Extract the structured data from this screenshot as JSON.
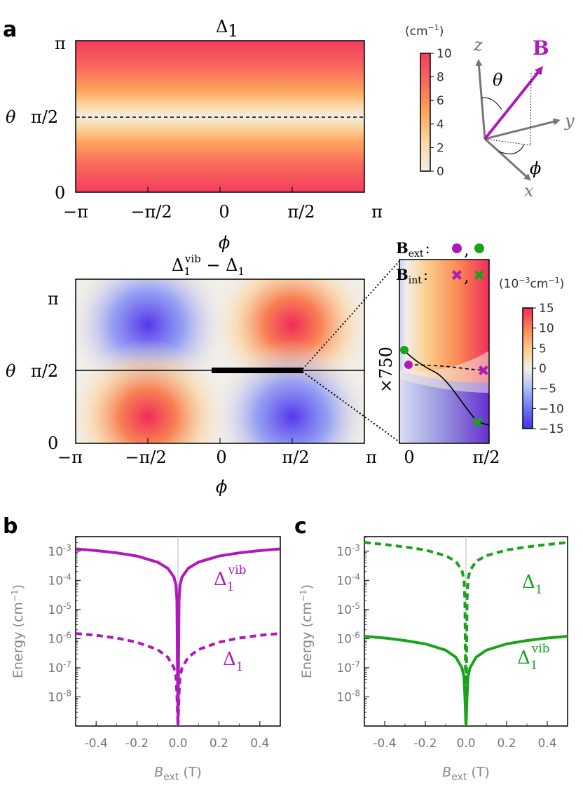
{
  "panel_labels": {
    "a": "a",
    "b": "b",
    "c": "c"
  },
  "colors": {
    "magenta": "#b118b9",
    "green": "#1aa21a",
    "gray": "#888888"
  },
  "panel_a_top": {
    "title": "Δ",
    "title_sub": "1",
    "y_label": "θ",
    "y_ticks": [
      "π",
      "π/2",
      "0"
    ],
    "x_ticks": [
      "−π",
      "−π/2",
      "0",
      "π/2",
      "π"
    ],
    "x_label": "ϕ",
    "colorbar": {
      "unit": "(cm",
      "unit_exp": "−1",
      "unit_close": ")",
      "ticks": [
        "10",
        "8",
        "6",
        "4",
        "2",
        "0"
      ]
    },
    "axes_diagram": {
      "B": "B",
      "z": "z",
      "y": "y",
      "x": "x",
      "theta": "θ",
      "phi": "ϕ"
    }
  },
  "panel_a_bottom": {
    "title_main": "Δ",
    "title_sub": "1",
    "title_sup": "vib",
    "title_minus": " − Δ",
    "title_sub2": "1",
    "y_label": "θ",
    "y_ticks": [
      "π",
      "π/2",
      "0"
    ],
    "x_ticks": [
      "−π",
      "−π/2",
      "0",
      "π/2",
      "π"
    ],
    "x_label": "ϕ",
    "inset": {
      "scale": "×750",
      "x_ticks": [
        "0",
        "π/2"
      ]
    },
    "legend": {
      "bext": "B",
      "bext_sub": "ext",
      "bint": "B",
      "bint_sub": "int",
      "sep": ":",
      "comma": ","
    },
    "colorbar": {
      "unit": "(10",
      "unit_exp1": "−3",
      "unit_mid": "cm",
      "unit_exp2": "−1",
      "unit_close": ")",
      "ticks": [
        "15",
        "10",
        "5",
        "0",
        "−5",
        "−10",
        "−15"
      ]
    }
  },
  "chart_data": [
    {
      "type": "line",
      "panel": "b",
      "xlabel": "B",
      "xlabel_sub": "ext",
      "xlabel_unit": " (T)",
      "ylabel": "Energy (cm",
      "ylabel_exp": "−1",
      "ylabel_close": ")",
      "xlim": [
        -0.5,
        0.5
      ],
      "ylim_log10": [
        -9,
        -2.5
      ],
      "x_ticks": [
        "-0.4",
        "-0.2",
        "0.0",
        "0.2",
        "0.4"
      ],
      "y_ticks": [
        {
          "base": "10",
          "exp": "-3"
        },
        {
          "base": "10",
          "exp": "-4"
        },
        {
          "base": "10",
          "exp": "-5"
        },
        {
          "base": "10",
          "exp": "-6"
        },
        {
          "base": "10",
          "exp": "-7"
        },
        {
          "base": "10",
          "exp": "-8"
        }
      ],
      "series": [
        {
          "name": "Δ1vib",
          "label_main": "Δ",
          "label_sub": "1",
          "label_sup": "vib",
          "style": "solid",
          "color": "#b118b9",
          "x": [
            -0.5,
            -0.4,
            -0.3,
            -0.2,
            -0.1,
            -0.05,
            -0.02,
            -0.01,
            -0.005,
            0.005,
            0.01,
            0.02,
            0.05,
            0.1,
            0.2,
            0.3,
            0.4,
            0.5
          ],
          "y": [
            0.0012,
            0.00105,
            0.00088,
            0.00068,
            0.00042,
            0.00026,
            0.00013,
            7e-05,
            2e-05,
            2e-05,
            7e-05,
            0.00013,
            0.00026,
            0.00042,
            0.00068,
            0.00088,
            0.00105,
            0.0012
          ]
        },
        {
          "name": "Δ1",
          "label_main": "Δ",
          "label_sub": "1",
          "style": "dashed",
          "color": "#b118b9",
          "x": [
            -0.5,
            -0.4,
            -0.3,
            -0.2,
            -0.1,
            -0.05,
            -0.02,
            -0.01,
            -0.005,
            0.005,
            0.01,
            0.02,
            0.05,
            0.1,
            0.2,
            0.3,
            0.4,
            0.5
          ],
          "y": [
            1.5e-06,
            1.3e-06,
            1.05e-06,
            7.5e-07,
            4.2e-07,
            2.3e-07,
            1e-07,
            5e-08,
            1.2e-08,
            1.2e-08,
            5e-08,
            1e-07,
            2.3e-07,
            4.2e-07,
            7.5e-07,
            1.05e-06,
            1.3e-06,
            1.5e-06
          ]
        }
      ]
    },
    {
      "type": "line",
      "panel": "c",
      "xlabel": "B",
      "xlabel_sub": "ext",
      "xlabel_unit": " (T)",
      "ylabel": "Energy (cm",
      "ylabel_exp": "−1",
      "ylabel_close": ")",
      "xlim": [
        -0.5,
        0.5
      ],
      "ylim_log10": [
        -9,
        -2.5
      ],
      "x_ticks": [
        "-0.4",
        "-0.2",
        "0.0",
        "0.2",
        "0.4"
      ],
      "y_ticks": [
        {
          "base": "10",
          "exp": "-3"
        },
        {
          "base": "10",
          "exp": "-4"
        },
        {
          "base": "10",
          "exp": "-5"
        },
        {
          "base": "10",
          "exp": "-6"
        },
        {
          "base": "10",
          "exp": "-7"
        },
        {
          "base": "10",
          "exp": "-8"
        }
      ],
      "series": [
        {
          "name": "Δ1",
          "label_main": "Δ",
          "label_sub": "1",
          "style": "dashed",
          "color": "#1aa21a",
          "x": [
            -0.5,
            -0.4,
            -0.3,
            -0.2,
            -0.1,
            -0.05,
            -0.02,
            -0.01,
            -0.005,
            0.005,
            0.01,
            0.02,
            0.05,
            0.1,
            0.2,
            0.3,
            0.4,
            0.5
          ],
          "y": [
            0.002,
            0.0017,
            0.0014,
            0.0011,
            0.0007,
            0.00045,
            0.00022,
            0.00011,
            2e-05,
            2e-05,
            0.00011,
            0.00022,
            0.00045,
            0.0007,
            0.0011,
            0.0014,
            0.0017,
            0.002
          ]
        },
        {
          "name": "Δ1vib",
          "label_main": "Δ",
          "label_sub": "1",
          "label_sup": "vib",
          "style": "solid",
          "color": "#1aa21a",
          "x": [
            -0.5,
            -0.4,
            -0.3,
            -0.2,
            -0.1,
            -0.05,
            -0.02,
            -0.01,
            -0.005,
            0.005,
            0.01,
            0.02,
            0.05,
            0.1,
            0.2,
            0.3,
            0.4,
            0.5
          ],
          "y": [
            1.2e-06,
            1.05e-06,
            8.6e-07,
            6.6e-07,
            4e-07,
            2.3e-07,
            1e-07,
            5e-08,
            1e-08,
            1e-08,
            5e-08,
            1e-07,
            2.3e-07,
            4e-07,
            6.6e-07,
            8.6e-07,
            1.05e-06,
            1.2e-06
          ]
        }
      ]
    }
  ]
}
